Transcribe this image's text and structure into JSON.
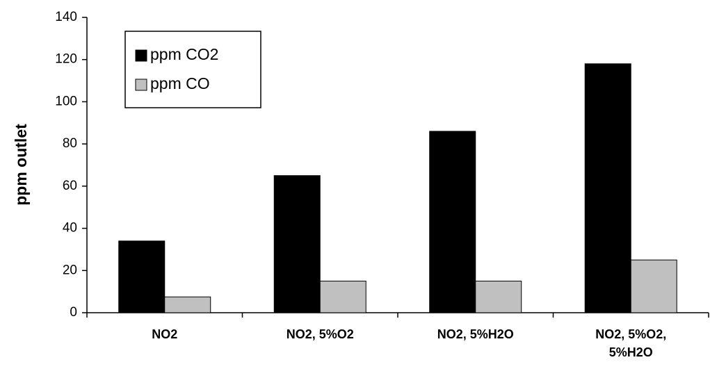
{
  "chart_data": {
    "type": "bar",
    "y_label": "ppm outlet",
    "categories": [
      "NO2",
      "NO2, 5%O2",
      "NO2, 5%H2O",
      "NO2, 5%O2, 5%H2O"
    ],
    "series": [
      {
        "name": "ppm CO2",
        "color": "#000000",
        "values": [
          34,
          65,
          86,
          118
        ]
      },
      {
        "name": "ppm CO",
        "color": "#c0c0c0",
        "values": [
          7.5,
          15,
          15,
          25
        ]
      }
    ],
    "ylim": [
      0,
      140
    ],
    "yticks": [
      0,
      20,
      40,
      60,
      80,
      100,
      120,
      140
    ],
    "grid": false,
    "legend": "upper left"
  }
}
